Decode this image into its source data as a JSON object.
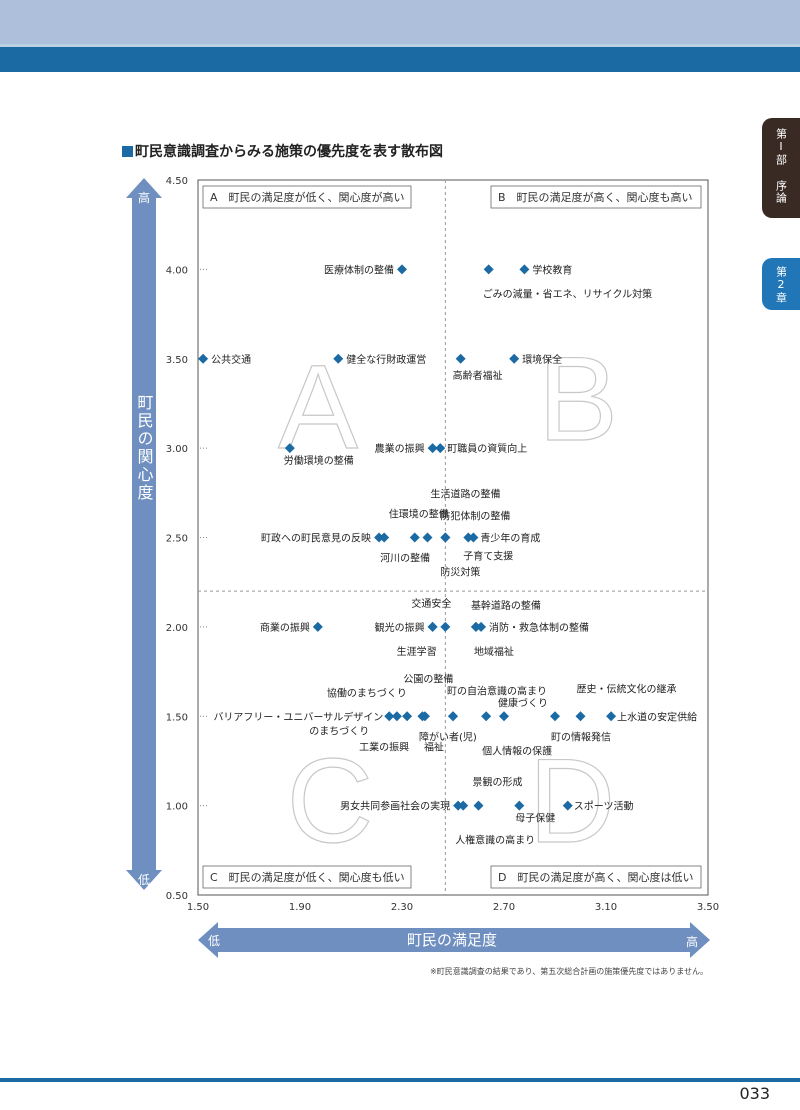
{
  "page": {
    "title": "町民意識調査からみる施策の優先度を表す散布図",
    "tab_part": "第Ⅰ部 序論",
    "tab_chapter": "第2章",
    "footnote": "※町民意識調査の結果であり、第五次総合計画の施策優先度ではありません。",
    "page_number": "033"
  },
  "chart_data": {
    "type": "scatter",
    "title": "町民意識調査からみる施策の優先度を表す散布図",
    "xlabel": "町民の満足度",
    "ylabel": "町民の関心度",
    "x_low": "低",
    "x_high": "高",
    "y_low": "低",
    "y_high": "高",
    "xlim": [
      1.5,
      3.5
    ],
    "ylim": [
      0.5,
      4.5
    ],
    "x_ticks": [
      "1.50",
      "1.90",
      "2.30",
      "2.70",
      "3.10",
      "3.50"
    ],
    "y_ticks": [
      "4.50",
      "4.00",
      "3.50",
      "3.00",
      "2.50",
      "2.00",
      "1.50",
      "1.00",
      "0.50"
    ],
    "x_divider": 2.47,
    "y_divider": 2.2,
    "grid": false,
    "quadrants": [
      {
        "id": "A",
        "label": "A　町民の満足度が低く、関心度が高い"
      },
      {
        "id": "B",
        "label": "B　町民の満足度が高く、関心度も高い"
      },
      {
        "id": "C",
        "label": "C　町民の満足度が低く、関心度も低い"
      },
      {
        "id": "D",
        "label": "D　町民の満足度が高く、関心度は低い"
      }
    ],
    "marker_color": "#1c6aa4",
    "points": [
      {
        "name": "医療体制の整備",
        "x": 2.3,
        "y": 4.0
      },
      {
        "name": "ごみの減量・省エネ、リサイクル対策",
        "x": 2.64,
        "y": 4.0
      },
      {
        "name": "学校教育",
        "x": 2.78,
        "y": 4.0
      },
      {
        "name": "公共交通",
        "x": 1.52,
        "y": 3.5
      },
      {
        "name": "健全な行財政運営",
        "x": 2.05,
        "y": 3.5
      },
      {
        "name": "高齢者福祉",
        "x": 2.53,
        "y": 3.5
      },
      {
        "name": "環境保全",
        "x": 2.74,
        "y": 3.5
      },
      {
        "name": "労働環境の整備",
        "x": 1.86,
        "y": 3.0
      },
      {
        "name": "農業の振興",
        "x": 2.42,
        "y": 3.0
      },
      {
        "name": "町職員の資質向上",
        "x": 2.45,
        "y": 3.0
      },
      {
        "name": "町政への町民意見の反映",
        "x": 2.21,
        "y": 2.5
      },
      {
        "name": "河川の整備",
        "x": 2.23,
        "y": 2.5
      },
      {
        "name": "住環境の整備",
        "x": 2.35,
        "y": 2.5
      },
      {
        "name": "生活道路の整備",
        "x": 2.4,
        "y": 2.5
      },
      {
        "name": "防犯体制の整備",
        "x": 2.47,
        "y": 2.5
      },
      {
        "name": "子育て支援",
        "x": 2.56,
        "y": 2.5
      },
      {
        "name": "青少年の育成",
        "x": 2.58,
        "y": 2.5
      },
      {
        "name": "防災対策",
        "x": 2.47,
        "y": 2.5
      },
      {
        "name": "商業の振興",
        "x": 1.97,
        "y": 2.0
      },
      {
        "name": "観光の振興",
        "x": 2.42,
        "y": 2.0
      },
      {
        "name": "生涯学習",
        "x": 2.42,
        "y": 2.0
      },
      {
        "name": "交通安全",
        "x": 2.47,
        "y": 2.0
      },
      {
        "name": "基幹道路の整備",
        "x": 2.59,
        "y": 2.0
      },
      {
        "name": "消防・救急体制の整備",
        "x": 2.61,
        "y": 2.0
      },
      {
        "name": "地域福祉",
        "x": 2.59,
        "y": 2.0
      },
      {
        "name": "バリアフリー・ユニバーサルデザインのまちづくり",
        "x": 2.25,
        "y": 1.5
      },
      {
        "name": "協働のまちづくり",
        "x": 2.28,
        "y": 1.5
      },
      {
        "name": "工業の振興",
        "x": 2.32,
        "y": 1.5
      },
      {
        "name": "公園の整備",
        "x": 2.38,
        "y": 1.5
      },
      {
        "name": "福祉",
        "x": 2.39,
        "y": 1.5
      },
      {
        "name": "障がい者(児)",
        "x": 2.5,
        "y": 1.5
      },
      {
        "name": "町の自治意識の高まり",
        "x": 2.5,
        "y": 1.5
      },
      {
        "name": "個人情報の保護",
        "x": 2.63,
        "y": 1.5
      },
      {
        "name": "健康づくり",
        "x": 2.7,
        "y": 1.5
      },
      {
        "name": "町の情報発信",
        "x": 2.9,
        "y": 1.5
      },
      {
        "name": "歴史・伝統文化の継承",
        "x": 3.0,
        "y": 1.5
      },
      {
        "name": "上水道の安定供給",
        "x": 3.12,
        "y": 1.5
      },
      {
        "name": "男女共同参画社会の実現",
        "x": 2.52,
        "y": 1.0
      },
      {
        "name": "人権意識の高まり",
        "x": 2.54,
        "y": 1.0
      },
      {
        "name": "景観の形成",
        "x": 2.6,
        "y": 1.0
      },
      {
        "name": "母子保健",
        "x": 2.76,
        "y": 1.0
      },
      {
        "name": "スポーツ活動",
        "x": 2.95,
        "y": 1.0
      }
    ]
  }
}
